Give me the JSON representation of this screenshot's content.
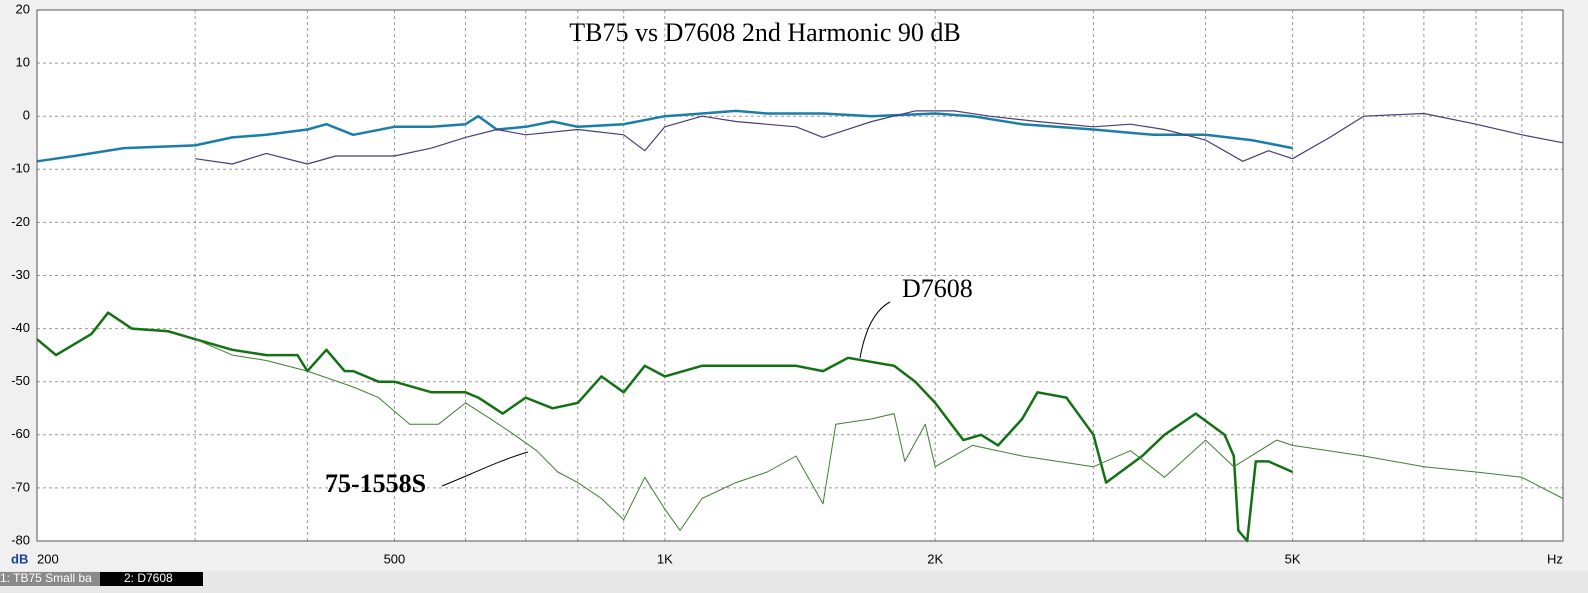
{
  "chart_data": {
    "type": "line",
    "title": "TB75 vs D7608 2nd Harmonic 90 dB",
    "y_unit": "dB",
    "x_unit": "Hz",
    "log_x": true,
    "grid": true,
    "xlim": [
      200,
      10000
    ],
    "ylim": [
      -80,
      20
    ],
    "xticks": [
      200,
      500,
      {
        "value": 1000,
        "label": "1K"
      },
      {
        "value": 2000,
        "label": "2K"
      },
      {
        "value": 5000,
        "label": "5K"
      }
    ],
    "xgrid": [
      300,
      400,
      600,
      700,
      800,
      900,
      3000,
      4000,
      6000,
      7000,
      8000,
      9000
    ],
    "yticks": [
      20,
      10,
      0,
      -10,
      -20,
      -30,
      -40,
      -50,
      -60,
      -70,
      -80
    ],
    "series": [
      {
        "color": "#1b7ea8",
        "width": 2.5,
        "x": [
          200,
          220,
          250,
          300,
          330,
          360,
          400,
          420,
          450,
          500,
          550,
          600,
          620,
          650,
          700,
          750,
          800,
          900,
          1000,
          1100,
          1200,
          1300,
          1500,
          1700,
          2000,
          2200,
          2500,
          3000,
          3500,
          4000,
          4500,
          5000
        ],
        "values": [
          -8.5,
          -7.5,
          -6,
          -5.5,
          -4,
          -3.5,
          -2.5,
          -1.5,
          -3.5,
          -2,
          -2,
          -1.5,
          0,
          -2.5,
          -2,
          -1,
          -2,
          -1.5,
          0,
          0.5,
          1,
          0.5,
          0.5,
          0,
          0.5,
          0,
          -1.5,
          -2.5,
          -3.5,
          -3.5,
          -4.5,
          -6
        ]
      },
      {
        "color": "#4b3b7a",
        "width": 1.2,
        "x": [
          300,
          330,
          360,
          400,
          430,
          500,
          550,
          600,
          650,
          700,
          800,
          900,
          950,
          1000,
          1100,
          1200,
          1400,
          1500,
          1700,
          1900,
          2100,
          2300,
          2600,
          3000,
          3300,
          3600,
          4000,
          4400,
          4700,
          5000,
          5500,
          6000,
          7000,
          8000,
          9000,
          10000
        ],
        "values": [
          -8,
          -9,
          -7,
          -9,
          -7.5,
          -7.5,
          -6,
          -4,
          -2.5,
          -3.5,
          -2.5,
          -3.5,
          -6.5,
          -2,
          0,
          -1,
          -2,
          -4,
          -1,
          1,
          1,
          0,
          -1,
          -2,
          -1.5,
          -2.5,
          -4.5,
          -8.5,
          -6.5,
          -8,
          -4,
          0,
          0.5,
          -1.5,
          -3.5,
          -5
        ]
      },
      {
        "color": "#137013",
        "width": 2.5,
        "x": [
          200,
          210,
          230,
          240,
          255,
          280,
          300,
          330,
          360,
          390,
          400,
          420,
          440,
          450,
          480,
          500,
          550,
          600,
          620,
          660,
          700,
          750,
          800,
          850,
          900,
          950,
          1000,
          1100,
          1200,
          1400,
          1500,
          1600,
          1800,
          1900,
          2000,
          2150,
          2250,
          2350,
          2500,
          2600,
          2800,
          3000,
          3100,
          3400,
          3600,
          3900,
          4200,
          4300,
          4350,
          4450,
          4550,
          4700,
          5000
        ],
        "values": [
          -42,
          -45,
          -41,
          -37,
          -40,
          -40.5,
          -42,
          -44,
          -45,
          -45,
          -48,
          -44,
          -48,
          -48,
          -50,
          -50,
          -52,
          -52,
          -53,
          -56,
          -53,
          -55,
          -54,
          -49,
          -52,
          -47,
          -49,
          -47,
          -47,
          -47,
          -48,
          -45.5,
          -47,
          -50,
          -54,
          -61,
          -60,
          -62,
          -57,
          -52,
          -53,
          -60,
          -69,
          -64,
          -60,
          -56,
          -60,
          -64,
          -78,
          -80,
          -65,
          -65,
          -67
        ]
      },
      {
        "color": "#3f7f33",
        "width": 1,
        "x": [
          300,
          330,
          360,
          400,
          450,
          480,
          520,
          560,
          600,
          640,
          680,
          720,
          760,
          800,
          850,
          900,
          950,
          1000,
          1040,
          1100,
          1200,
          1300,
          1400,
          1500,
          1550,
          1700,
          1800,
          1850,
          1950,
          2000,
          2200,
          2500,
          3000,
          3300,
          3600,
          4000,
          4300,
          4800,
          5000,
          6000,
          7000,
          8000,
          9000,
          10000
        ],
        "values": [
          -42,
          -45,
          -46,
          -48,
          -51,
          -53,
          -58,
          -58,
          -54,
          -57,
          -60,
          -63,
          -67,
          -69,
          -72,
          -76,
          -68,
          -74,
          -78,
          -72,
          -69,
          -67,
          -64,
          -73,
          -58,
          -57,
          -56,
          -65,
          -58,
          -66,
          -62,
          -64,
          -66,
          -63,
          -68,
          -61,
          -66,
          -61,
          -62,
          -64,
          -66,
          -67,
          -68,
          -72
        ]
      }
    ],
    "annotations": [
      "D7608",
      "75-1558S"
    ]
  },
  "tabs": [
    "1: TB75 Small ba",
    "2: D7608"
  ]
}
